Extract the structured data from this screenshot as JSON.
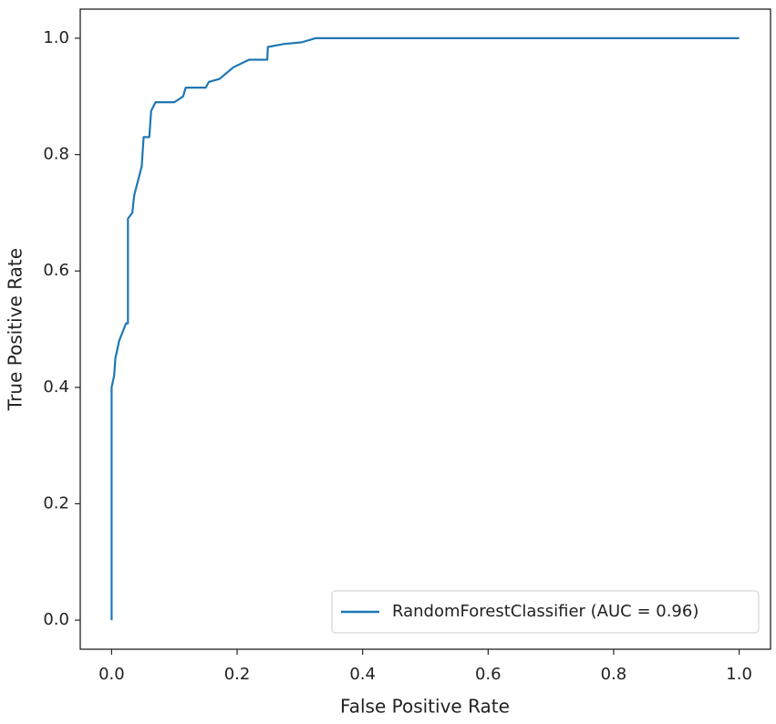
{
  "chart_data": {
    "type": "line",
    "xlabel": "False Positive Rate",
    "ylabel": "True Positive Rate",
    "x": [
      0,
      0,
      0.004,
      0.006,
      0.012,
      0.023,
      0.026,
      0.026,
      0.033,
      0.036,
      0.048,
      0.051,
      0.06,
      0.063,
      0.07,
      0.1,
      0.114,
      0.118,
      0.15,
      0.155,
      0.172,
      0.194,
      0.219,
      0.248,
      0.249,
      0.274,
      0.303,
      0.325,
      1.0
    ],
    "series": [
      {
        "name": "RandomForestClassifier (AUC = 0.96)",
        "color": "#1f77b4",
        "values": [
          0,
          0.4,
          0.42,
          0.45,
          0.48,
          0.51,
          0.51,
          0.69,
          0.7,
          0.73,
          0.78,
          0.83,
          0.83,
          0.875,
          0.89,
          0.89,
          0.9,
          0.915,
          0.915,
          0.925,
          0.93,
          0.95,
          0.963,
          0.963,
          0.985,
          0.99,
          0.993,
          1.0,
          1.0
        ]
      }
    ],
    "xlim": [
      -0.05,
      1.05
    ],
    "ylim": [
      -0.05,
      1.05
    ],
    "xticks": [
      {
        "value": 0,
        "label": "0.0"
      },
      0.2,
      0.4,
      0.6,
      0.8,
      {
        "value": 1,
        "label": "1.0"
      }
    ],
    "yticks": [
      {
        "value": 0,
        "label": "0.0"
      },
      0.2,
      0.4,
      0.6,
      0.8,
      {
        "value": 1,
        "label": "1.0"
      }
    ],
    "legend": "lower right",
    "grid": false
  }
}
